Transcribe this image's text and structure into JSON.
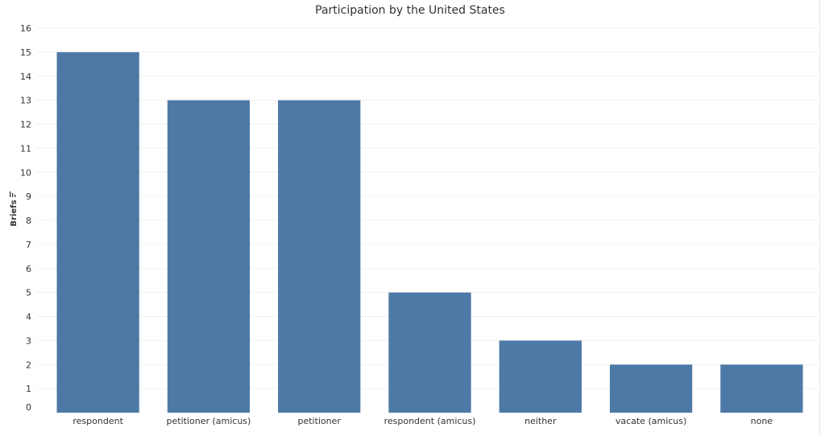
{
  "chart_data": {
    "type": "bar",
    "title": "Participation by the United States",
    "xlabel": "",
    "ylabel": "Briefs",
    "ylim": [
      0,
      16
    ],
    "yticks": [
      0,
      1,
      2,
      3,
      4,
      5,
      6,
      7,
      8,
      9,
      10,
      11,
      12,
      13,
      14,
      15,
      16
    ],
    "categories": [
      "respondent",
      "petitioner (amicus)",
      "petitioner",
      "respondent (amicus)",
      "neither",
      "vacate (amicus)",
      "none"
    ],
    "values": [
      15,
      13,
      13,
      5,
      3,
      2,
      2
    ],
    "grid": true,
    "colors": {
      "bar": "#4e79a7"
    },
    "sort_icon": "sort-descending-icon"
  }
}
